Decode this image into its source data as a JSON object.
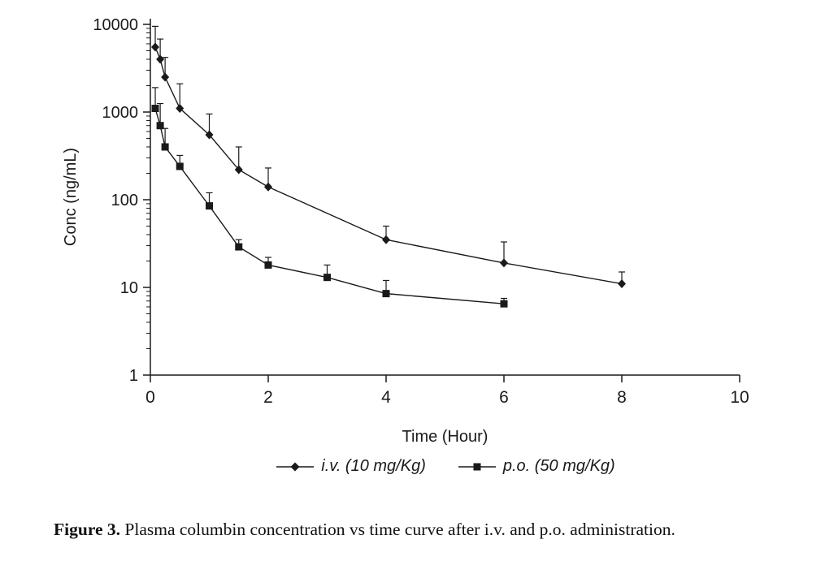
{
  "chart_data": {
    "type": "line",
    "title": "",
    "x_axis": {
      "label": "Time (Hour)",
      "range": [
        0,
        10
      ],
      "ticks": [
        0,
        2,
        4,
        6,
        8,
        10
      ],
      "scale": "linear"
    },
    "y_axis": {
      "label": "Conc (ng/mL)",
      "range": [
        1,
        10000
      ],
      "ticks": [
        1,
        10,
        100,
        1000,
        10000
      ],
      "scale": "log"
    },
    "grid": false,
    "legend_position": "bottom",
    "series": [
      {
        "name": "i.v. (10 mg/Kg)",
        "marker": "diamond",
        "color": "#1a1a1a",
        "x": [
          0.083,
          0.167,
          0.25,
          0.5,
          1,
          1.5,
          2,
          4,
          6,
          8
        ],
        "y": [
          5500,
          4000,
          2500,
          1100,
          550,
          220,
          140,
          35,
          19,
          11
        ],
        "y_err_upper": [
          9500,
          6800,
          4200,
          2100,
          950,
          400,
          230,
          50,
          33,
          15
        ]
      },
      {
        "name": "p.o. (50 mg/Kg)",
        "marker": "square",
        "color": "#1a1a1a",
        "x": [
          0.083,
          0.167,
          0.25,
          0.5,
          1,
          1.5,
          2,
          3,
          4,
          6
        ],
        "y": [
          1100,
          700,
          400,
          240,
          85,
          29,
          18,
          13,
          8.5,
          6.5
        ],
        "y_err_upper": [
          1900,
          1250,
          650,
          320,
          120,
          35,
          22,
          18,
          12,
          7.5
        ]
      }
    ]
  },
  "legend": {
    "items": [
      {
        "label": "i.v. (10 mg/Kg)",
        "marker": "diamond"
      },
      {
        "label": "p.o. (50 mg/Kg)",
        "marker": "square"
      }
    ]
  },
  "caption": {
    "label": "Figure 3.",
    "text": "Plasma columbin concentration vs time curve after i.v. and p.o. administration."
  }
}
